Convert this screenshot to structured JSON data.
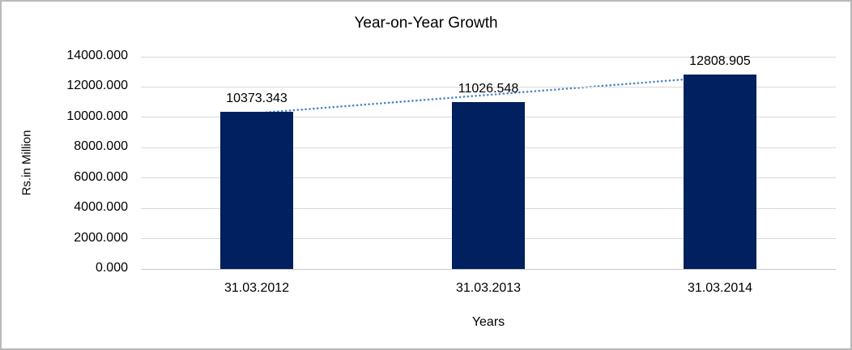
{
  "chart_data": {
    "type": "bar",
    "title": "Year-on-Year Growth",
    "xlabel": "Years",
    "ylabel": "Rs.in Million",
    "categories": [
      "31.03.2012",
      "31.03.2013",
      "31.03.2014"
    ],
    "values": [
      10373.343,
      11026.548,
      12808.905
    ],
    "value_labels": [
      "10373.343",
      "11026.548",
      "12808.905"
    ],
    "y_tick_labels": [
      "14000.000",
      "12000.000",
      "10000.000",
      "8000.000",
      "6000.000",
      "4000.000",
      "2000.000",
      "0.000"
    ],
    "ylim": [
      0,
      14000
    ],
    "grid": true,
    "legend": "none",
    "bar_color": "#002060",
    "gridline_color": "#d9d9d9",
    "trendline": {
      "type": "linear",
      "style": "dotted",
      "color": "#4a86c8"
    }
  }
}
